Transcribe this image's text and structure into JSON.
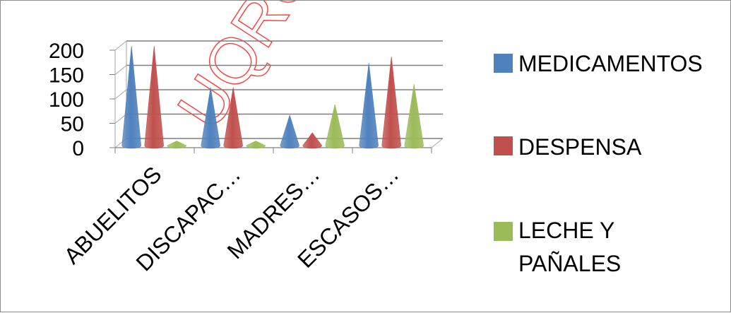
{
  "watermark": "UQROO",
  "chart_data": {
    "type": "bar",
    "bar_shape": "cone",
    "categories": [
      "ABUELITOS",
      "DISCAPAC…",
      "MADRES…",
      "ESCASOS…"
    ],
    "series": [
      {
        "name": "MEDICAMENTOS",
        "color": "#4f81bd",
        "values": [
          200,
          115,
          58,
          165
        ]
      },
      {
        "name": "DESPENSA",
        "color": "#c0504d",
        "values": [
          200,
          115,
          22,
          178
        ]
      },
      {
        "name": "LECHE Y PAÑALES",
        "color": "#9bbb59",
        "values": [
          5,
          5,
          80,
          122
        ]
      }
    ],
    "yticks": [
      0,
      50,
      100,
      150,
      200
    ],
    "ylim": [
      0,
      200
    ],
    "grid": true,
    "legend_position": "right",
    "title": "",
    "xlabel": "",
    "ylabel": ""
  }
}
